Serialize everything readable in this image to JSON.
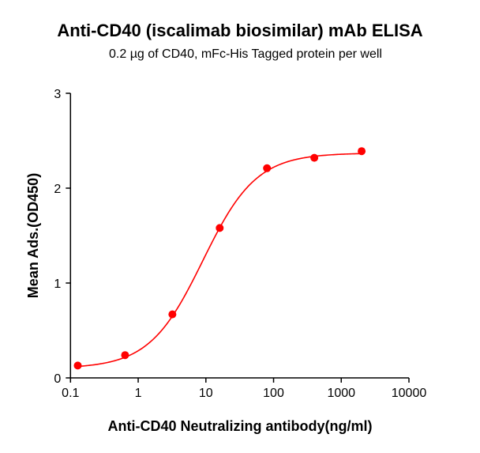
{
  "chart_data": {
    "type": "line",
    "title": "Anti-CD40 (iscalimab biosimilar) mAb ELISA",
    "subtitle": "0.2 µg of CD40, mFc-His Tagged protein per well",
    "xlabel": "Anti-CD40 Neutralizing antibody(ng/ml)",
    "ylabel": "Mean Ads.(OD450)",
    "xscale": "log",
    "xlim": [
      0.1,
      10000
    ],
    "ylim": [
      0,
      3
    ],
    "xticks": [
      "0.1",
      "1",
      "10",
      "100",
      "1000",
      "10000"
    ],
    "xtick_values": [
      0.1,
      1,
      10,
      100,
      1000,
      10000
    ],
    "yticks": [
      "0",
      "1",
      "2",
      "3"
    ],
    "ytick_values": [
      0,
      1,
      2,
      3
    ],
    "grid": false,
    "series": [
      {
        "x": [
          0.128,
          0.64,
          3.2,
          16,
          80,
          400,
          2000
        ],
        "y": [
          0.13,
          0.24,
          0.67,
          1.58,
          2.21,
          2.32,
          2.39
        ],
        "color": "#ff0000",
        "fit": "4PL sigmoidal curve"
      }
    ]
  }
}
